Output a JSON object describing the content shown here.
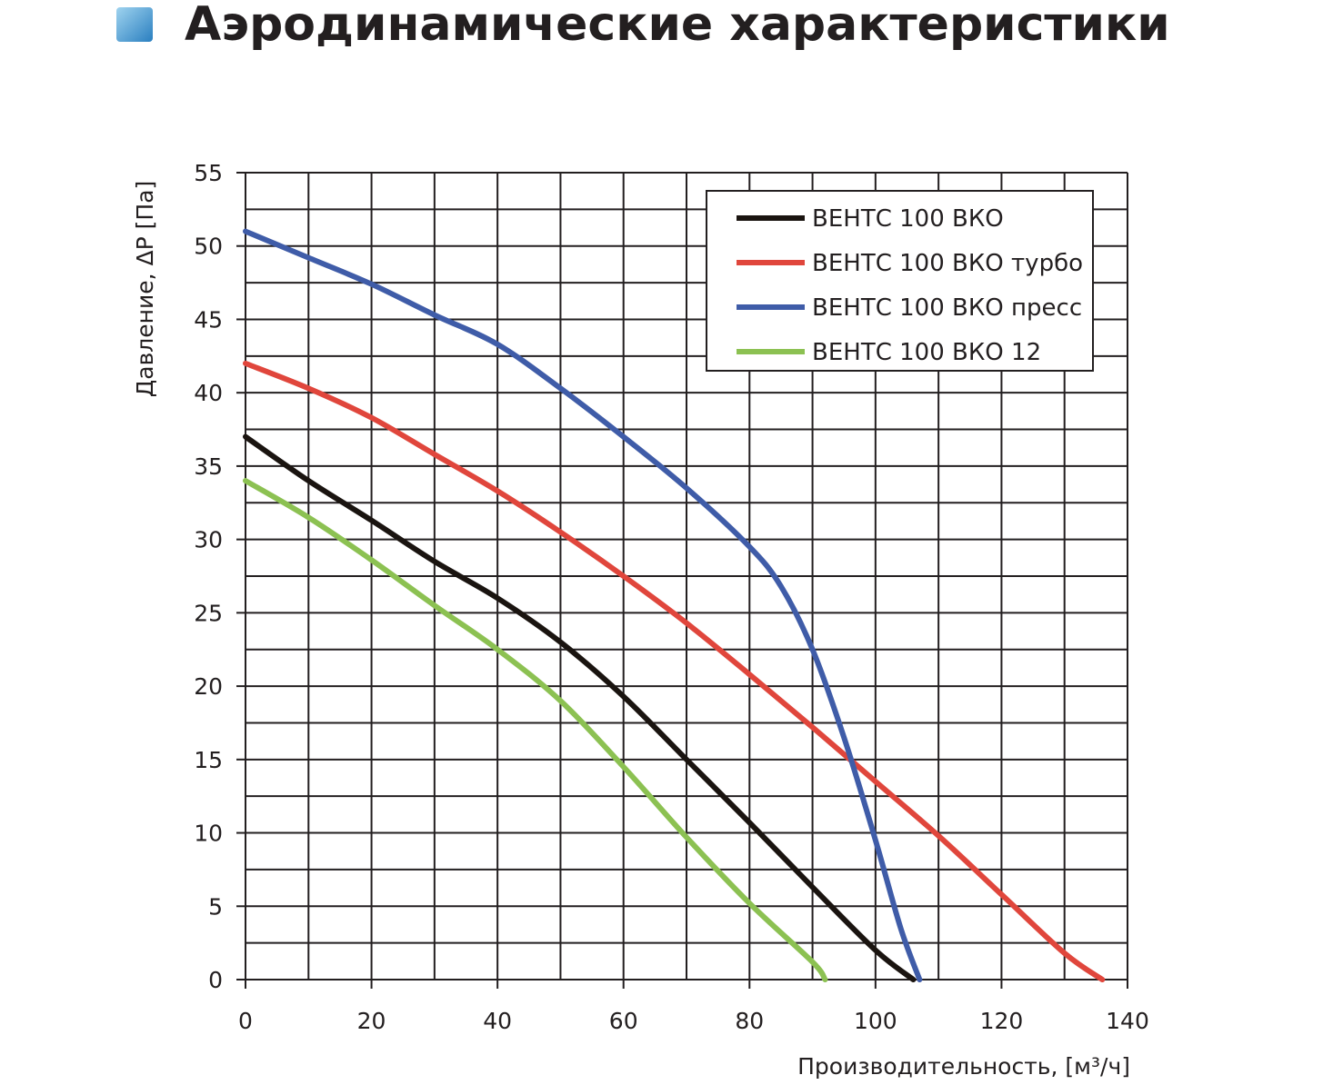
{
  "chart_data": {
    "type": "line",
    "title": "Аэродинамические характеристики",
    "x_label": "Производительность, [м³/ч]",
    "y_label": "Давление, ΔP [Па]",
    "xlim": [
      0,
      140
    ],
    "ylim": [
      0,
      55
    ],
    "xticks": [
      0,
      20,
      40,
      60,
      80,
      100,
      120,
      140
    ],
    "yticks": [
      0,
      5,
      10,
      15,
      20,
      25,
      30,
      35,
      40,
      45,
      50,
      55
    ],
    "grid": true,
    "x_grid_step": 10,
    "y_grid_step": 2.5,
    "legend": "upper right",
    "series": [
      {
        "name": "ВЕНТС 100 ВКО",
        "color": "#1a1410",
        "x": [
          0,
          10,
          20,
          30,
          40,
          50,
          60,
          70,
          80,
          90,
          100,
          106
        ],
        "values": [
          37,
          34,
          31.3,
          28.5,
          26,
          23,
          19.3,
          15,
          10.7,
          6.3,
          2,
          0
        ]
      },
      {
        "name": "ВЕНТС 100 ВКО турбо",
        "color": "#e0463c",
        "x": [
          0,
          10,
          20,
          30,
          40,
          50,
          60,
          70,
          80,
          90,
          100,
          110,
          120,
          130,
          136
        ],
        "values": [
          42,
          40.3,
          38.3,
          35.8,
          33.3,
          30.5,
          27.5,
          24.3,
          20.8,
          17.2,
          13.5,
          9.8,
          5.8,
          1.8,
          0
        ]
      },
      {
        "name": "ВЕНТС 100 ВКО пресс",
        "color": "#3f5ca8",
        "x": [
          0,
          10,
          20,
          30,
          40,
          50,
          60,
          70,
          80,
          85,
          90,
          95,
          100,
          104,
          107
        ],
        "values": [
          51,
          49.2,
          47.4,
          45.3,
          43.3,
          40.3,
          37,
          33.5,
          29.5,
          26.8,
          22.5,
          16.5,
          9.5,
          3.5,
          0
        ]
      },
      {
        "name": "ВЕНТС 100 ВКО 12",
        "color": "#8cc152",
        "x": [
          0,
          10,
          20,
          30,
          40,
          50,
          60,
          70,
          80,
          90,
          92
        ],
        "values": [
          34,
          31.5,
          28.6,
          25.5,
          22.5,
          19,
          14.5,
          9.7,
          5.2,
          1.2,
          0
        ]
      }
    ]
  }
}
